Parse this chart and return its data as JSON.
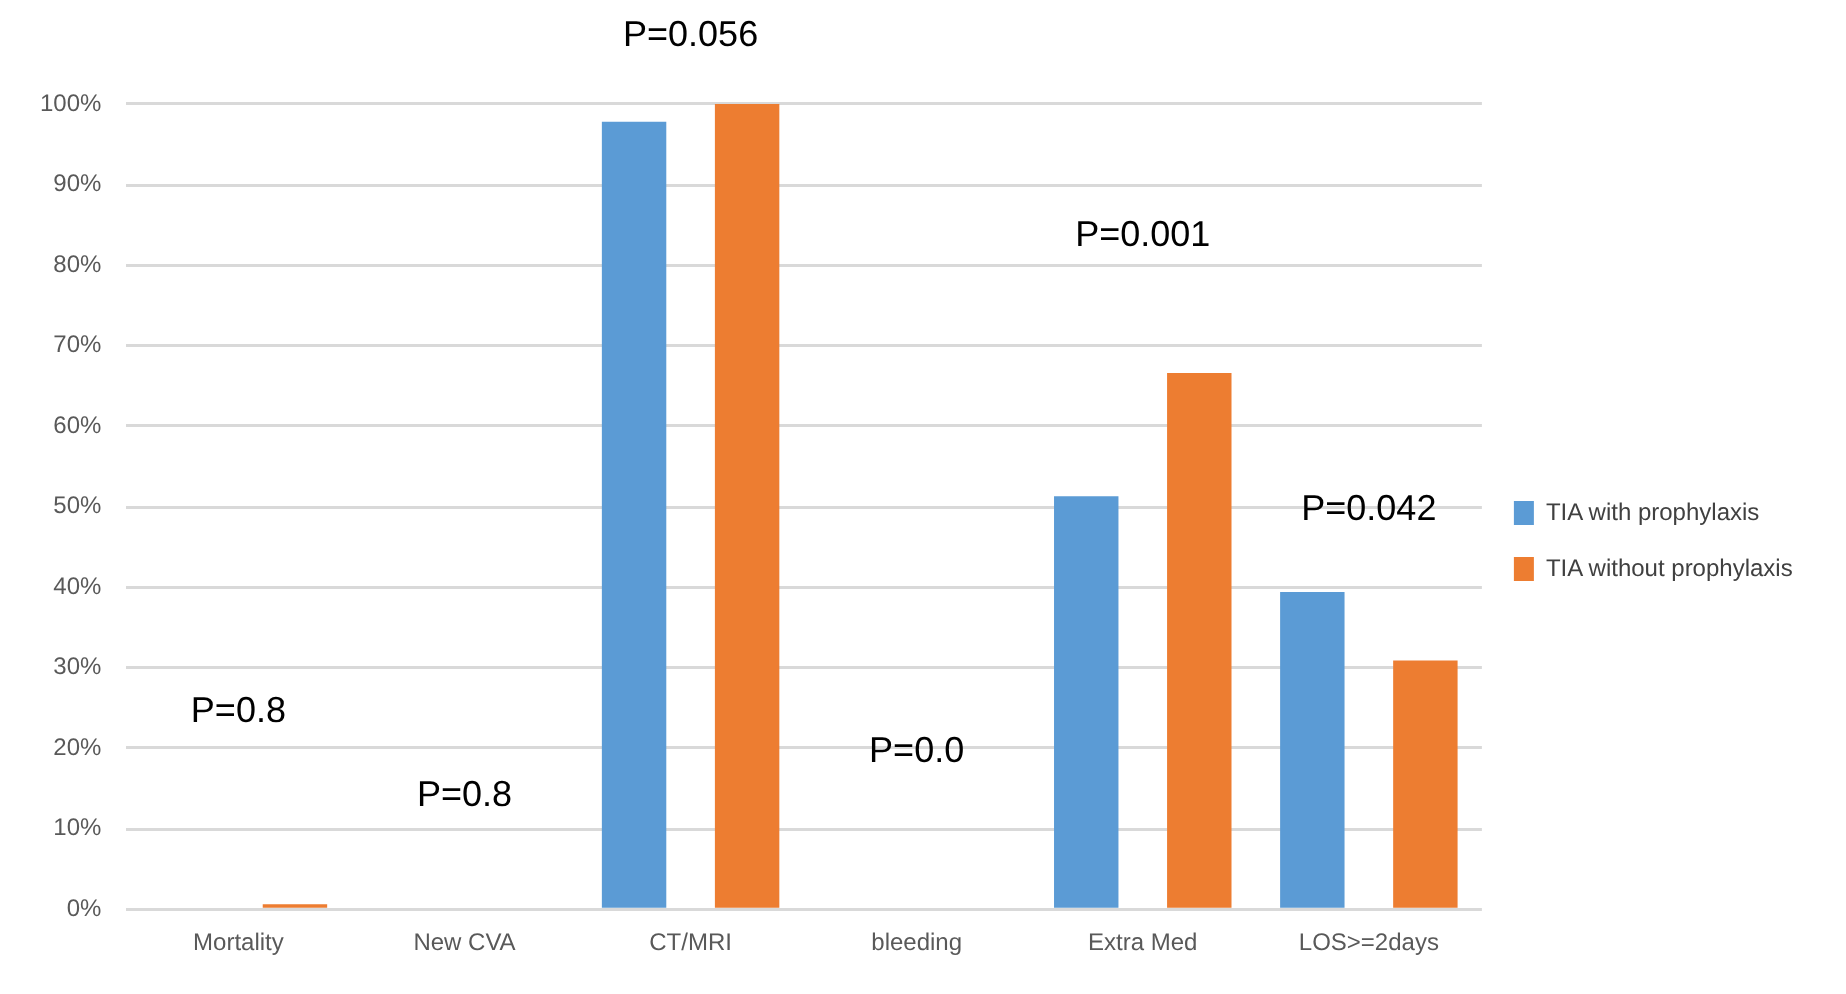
{
  "chart_data": {
    "type": "bar",
    "categories": [
      "Mortality",
      "New CVA",
      "CT/MRI",
      "bleeding",
      "Extra Med",
      "LOS>=2days"
    ],
    "series": [
      {
        "name": "TIA with prophylaxis",
        "color": "#5b9bd5",
        "values": [
          0,
          0,
          97.8,
          0,
          51.3,
          39.4
        ]
      },
      {
        "name": "TIA without prophylaxis",
        "color": "#ed7d31",
        "values": [
          0.6,
          0,
          100,
          0,
          66.6,
          30.9
        ]
      }
    ],
    "ylim": [
      0,
      100
    ],
    "yticks": [
      {
        "value": 0,
        "label": "0%"
      },
      {
        "value": 10,
        "label": "10%"
      },
      {
        "value": 20,
        "label": "20%"
      },
      {
        "value": 30,
        "label": "30%"
      },
      {
        "value": 40,
        "label": "40%"
      },
      {
        "value": 50,
        "label": "50%"
      },
      {
        "value": 60,
        "label": "60%"
      },
      {
        "value": 70,
        "label": "70%"
      },
      {
        "value": 80,
        "label": "80%"
      },
      {
        "value": 90,
        "label": "90%"
      },
      {
        "value": 100,
        "label": "100%"
      }
    ],
    "annotations": [
      "P=0.8",
      "P=0.8",
      "P=0.056",
      "P=0.0",
      "P=0.001",
      "P=0.042"
    ],
    "grid": "y",
    "legend": "right"
  }
}
